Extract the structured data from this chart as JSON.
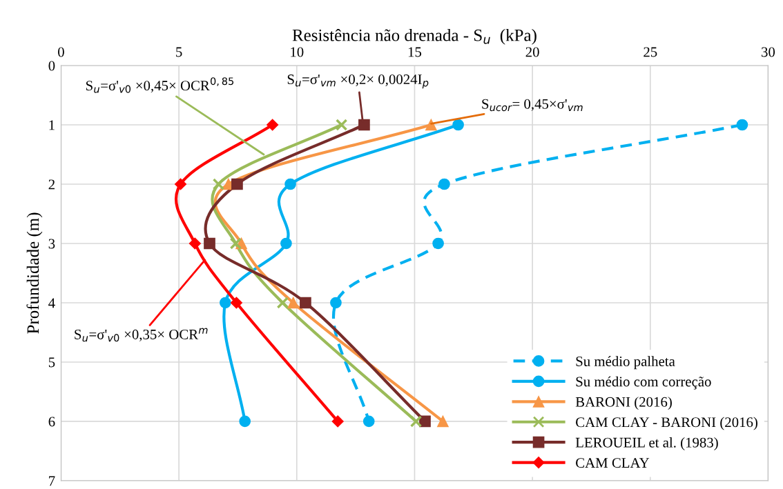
{
  "chart_data": {
    "type": "line",
    "xlabel": "Resistência não drenada - S$_{u}$  (kPa)",
    "ylabel": "Profundidade (m)",
    "xlim": [
      0,
      30
    ],
    "xticks": [
      0,
      5,
      10,
      15,
      20,
      25,
      30
    ],
    "ylim": [
      7,
      0
    ],
    "yticks": [
      0,
      1,
      2,
      3,
      4,
      5,
      6,
      7
    ],
    "grid": true,
    "legend": "bottom right",
    "series": [
      {
        "name": "Su médio palheta",
        "color": "#00b0f0",
        "marker": "circle",
        "line_style": "dashed",
        "x": [
          28.9,
          16.26,
          16.0,
          11.66,
          13.06
        ],
        "values": [
          1,
          2,
          3,
          4,
          6
        ]
      },
      {
        "name": "Su médio com correção",
        "color": "#00b0f0",
        "marker": "circle",
        "line_style": "solid",
        "x": [
          16.85,
          9.73,
          9.55,
          6.97,
          7.8
        ],
        "values": [
          1,
          2,
          3,
          4,
          6
        ]
      },
      {
        "name": "BARONI (2016)",
        "color": "#f79646",
        "marker": "triangle",
        "line_style": "solid",
        "x": [
          15.7,
          7.1,
          7.65,
          9.85,
          16.2
        ],
        "values": [
          1,
          2,
          3,
          4,
          6
        ]
      },
      {
        "name": "CAM CLAY - BARONI (2016)",
        "color": "#9bbb59",
        "marker": "cross",
        "line_style": "solid",
        "x": [
          11.9,
          6.68,
          7.41,
          9.4,
          15.06
        ],
        "values": [
          1,
          2,
          3,
          4,
          6
        ]
      },
      {
        "name": "LEROUEIL et al. (1983)",
        "color": "#772c2a",
        "marker": "square",
        "line_style": "solid",
        "x": [
          12.86,
          7.47,
          6.3,
          10.37,
          15.44
        ],
        "values": [
          1,
          2,
          3,
          4,
          6
        ]
      },
      {
        "name": "CAM CLAY",
        "color": "#ff0000",
        "marker": "diamond",
        "line_style": "solid",
        "x": [
          8.97,
          5.07,
          5.68,
          7.44,
          11.74
        ],
        "values": [
          1,
          2,
          3,
          4,
          6
        ]
      }
    ],
    "annotations": [
      {
        "text": "S$_{u}$=σ'$_{v0}$ ×0,45× OCR$^{0,85}$",
        "x": 8.6,
        "y": 1.5
      },
      {
        "text": "S$_{u}$=σ'$_{vm}$ ×0,2× 0,0024I$_{p}$",
        "x": 12.8,
        "y": 0.95
      },
      {
        "text": "S$_{ucor}$= 0,45×σ'$_{vm}$",
        "x": 15.7,
        "y": 0.98
      },
      {
        "text": "S$_{u}$=σ'$_{v0}$ ×0,35× OCR$^{m}$",
        "x": 6.1,
        "y": 3.28
      }
    ]
  }
}
